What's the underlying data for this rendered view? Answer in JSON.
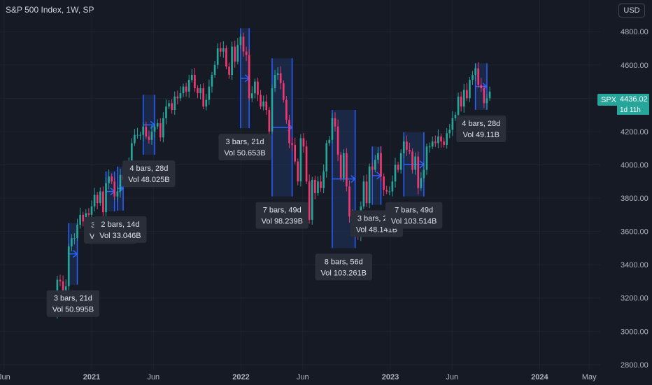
{
  "header": {
    "title": "S&P 500 Index, 1W, SP",
    "currency_button": "USD"
  },
  "last_price": {
    "symbol": "SPX",
    "price": "4436.02",
    "countdown": "1d 11h"
  },
  "colors": {
    "background": "#161a25",
    "up": "#26a69a",
    "down": "#f23670",
    "range_border": "#2962ff",
    "range_fill": "#1e3a6e",
    "label_bg": "#2a2e39",
    "axis_text": "#b2b5be",
    "grid": "#1f2330"
  },
  "chart_data": {
    "type": "candlestick",
    "title": "S&P 500 Index, 1W, SP",
    "y_axis": {
      "ticks": [
        2800,
        3000,
        3200,
        3400,
        3600,
        3800,
        4000,
        4200,
        4400,
        4600,
        4800
      ],
      "tick_labels": [
        "2800.00",
        "3000.00",
        "3200.00",
        "3400.00",
        "3600.00",
        "3800.00",
        "4000.00",
        "4200.00",
        "4400.00",
        "4600.00",
        "4800.00"
      ],
      "ylim": [
        2770,
        4990
      ]
    },
    "x_axis": {
      "tick_labels": [
        "Jun",
        "2021",
        "Jun",
        "2022",
        "Jun",
        "2023",
        "Jun",
        "2024",
        "May"
      ],
      "tick_dates": [
        "2020-06-01",
        "2021-01-01",
        "2021-06-01",
        "2022-01-01",
        "2022-06-01",
        "2023-01-01",
        "2023-06-01",
        "2024-01-01",
        "2024-05-01"
      ],
      "range": [
        "2020-05-22",
        "2024-05-28"
      ]
    },
    "weekly_close": [
      [
        "2020-10-02",
        3100
      ],
      [
        "2020-10-09",
        3310
      ],
      [
        "2020-10-16",
        3300
      ],
      [
        "2020-10-23",
        3240
      ],
      [
        "2020-10-30",
        3270
      ],
      [
        "2020-11-06",
        3510
      ],
      [
        "2020-11-13",
        3560
      ],
      [
        "2020-11-20",
        3560
      ],
      [
        "2020-11-27",
        3640
      ],
      [
        "2020-12-04",
        3700
      ],
      [
        "2020-12-11",
        3660
      ],
      [
        "2020-12-18",
        3710
      ],
      [
        "2020-12-25",
        3700
      ],
      [
        "2021-01-01",
        3750
      ],
      [
        "2021-01-08",
        3820
      ],
      [
        "2021-01-15",
        3770
      ],
      [
        "2021-01-22",
        3840
      ],
      [
        "2021-01-29",
        3715
      ],
      [
        "2021-02-05",
        3890
      ],
      [
        "2021-02-12",
        3930
      ],
      [
        "2021-02-19",
        3900
      ],
      [
        "2021-02-26",
        3810
      ],
      [
        "2021-03-05",
        3840
      ],
      [
        "2021-03-12",
        3940
      ],
      [
        "2021-03-19",
        3910
      ],
      [
        "2021-03-26",
        3970
      ],
      [
        "2021-04-02",
        4020
      ],
      [
        "2021-04-09",
        4130
      ],
      [
        "2021-04-16",
        4180
      ],
      [
        "2021-04-23",
        4180
      ],
      [
        "2021-04-30",
        4180
      ],
      [
        "2021-05-07",
        4230
      ],
      [
        "2021-05-14",
        4170
      ],
      [
        "2021-05-21",
        4150
      ],
      [
        "2021-05-28",
        4200
      ],
      [
        "2021-06-04",
        4230
      ],
      [
        "2021-06-11",
        4250
      ],
      [
        "2021-06-18",
        4165
      ],
      [
        "2021-06-25",
        4280
      ],
      [
        "2021-07-02",
        4350
      ],
      [
        "2021-07-09",
        4370
      ],
      [
        "2021-07-16",
        4330
      ],
      [
        "2021-07-23",
        4410
      ],
      [
        "2021-07-30",
        4400
      ],
      [
        "2021-08-06",
        4430
      ],
      [
        "2021-08-13",
        4470
      ],
      [
        "2021-08-20",
        4440
      ],
      [
        "2021-08-27",
        4510
      ],
      [
        "2021-09-03",
        4540
      ],
      [
        "2021-09-10",
        4460
      ],
      [
        "2021-09-17",
        4430
      ],
      [
        "2021-09-24",
        4460
      ],
      [
        "2021-10-01",
        4350
      ],
      [
        "2021-10-08",
        4390
      ],
      [
        "2021-10-15",
        4470
      ],
      [
        "2021-10-22",
        4540
      ],
      [
        "2021-10-29",
        4600
      ],
      [
        "2021-11-05",
        4700
      ],
      [
        "2021-11-12",
        4680
      ],
      [
        "2021-11-19",
        4700
      ],
      [
        "2021-11-26",
        4590
      ],
      [
        "2021-12-03",
        4540
      ],
      [
        "2021-12-10",
        4710
      ],
      [
        "2021-12-17",
        4620
      ],
      [
        "2021-12-24",
        4720
      ],
      [
        "2021-12-31",
        4770
      ],
      [
        "2022-01-07",
        4680
      ],
      [
        "2022-01-14",
        4660
      ],
      [
        "2022-01-21",
        4400
      ],
      [
        "2022-01-28",
        4430
      ],
      [
        "2022-02-04",
        4500
      ],
      [
        "2022-02-11",
        4420
      ],
      [
        "2022-02-18",
        4350
      ],
      [
        "2022-02-25",
        4380
      ],
      [
        "2022-03-04",
        4330
      ],
      [
        "2022-03-11",
        4200
      ],
      [
        "2022-03-18",
        4460
      ],
      [
        "2022-03-25",
        4540
      ],
      [
        "2022-04-01",
        4550
      ],
      [
        "2022-04-08",
        4490
      ],
      [
        "2022-04-15",
        4390
      ],
      [
        "2022-04-22",
        4270
      ],
      [
        "2022-04-29",
        4130
      ],
      [
        "2022-05-06",
        4120
      ],
      [
        "2022-05-13",
        4020
      ],
      [
        "2022-05-20",
        3900
      ],
      [
        "2022-05-27",
        4160
      ],
      [
        "2022-06-03",
        4110
      ],
      [
        "2022-06-10",
        3900
      ],
      [
        "2022-06-17",
        3670
      ],
      [
        "2022-06-24",
        3910
      ],
      [
        "2022-07-01",
        3830
      ],
      [
        "2022-07-08",
        3900
      ],
      [
        "2022-07-15",
        3860
      ],
      [
        "2022-07-22",
        3960
      ],
      [
        "2022-07-29",
        4130
      ],
      [
        "2022-08-05",
        4150
      ],
      [
        "2022-08-12",
        4280
      ],
      [
        "2022-08-19",
        4230
      ],
      [
        "2022-08-26",
        4060
      ],
      [
        "2022-09-02",
        3920
      ],
      [
        "2022-09-09",
        4070
      ],
      [
        "2022-09-16",
        3870
      ],
      [
        "2022-09-23",
        3690
      ],
      [
        "2022-09-30",
        3590
      ],
      [
        "2022-10-07",
        3640
      ],
      [
        "2022-10-14",
        3580
      ],
      [
        "2022-10-21",
        3750
      ],
      [
        "2022-10-28",
        3900
      ],
      [
        "2022-11-04",
        3770
      ],
      [
        "2022-11-11",
        3990
      ],
      [
        "2022-11-18",
        3970
      ],
      [
        "2022-11-25",
        4030
      ],
      [
        "2022-12-02",
        4070
      ],
      [
        "2022-12-09",
        3930
      ],
      [
        "2022-12-16",
        3850
      ],
      [
        "2022-12-23",
        3840
      ],
      [
        "2022-12-30",
        3840
      ],
      [
        "2023-01-06",
        3900
      ],
      [
        "2023-01-13",
        4000
      ],
      [
        "2023-01-20",
        3970
      ],
      [
        "2023-01-27",
        4070
      ],
      [
        "2023-02-03",
        4140
      ],
      [
        "2023-02-10",
        4090
      ],
      [
        "2023-02-17",
        4080
      ],
      [
        "2023-02-24",
        3970
      ],
      [
        "2023-03-03",
        4050
      ],
      [
        "2023-03-10",
        3860
      ],
      [
        "2023-03-17",
        3920
      ],
      [
        "2023-03-24",
        3970
      ],
      [
        "2023-03-31",
        4110
      ],
      [
        "2023-04-07",
        4110
      ],
      [
        "2023-04-14",
        4140
      ],
      [
        "2023-04-21",
        4130
      ],
      [
        "2023-04-28",
        4170
      ],
      [
        "2023-05-05",
        4140
      ],
      [
        "2023-05-12",
        4120
      ],
      [
        "2023-05-19",
        4190
      ],
      [
        "2023-05-26",
        4210
      ],
      [
        "2023-06-02",
        4280
      ],
      [
        "2023-06-09",
        4300
      ],
      [
        "2023-06-16",
        4410
      ],
      [
        "2023-06-23",
        4350
      ],
      [
        "2023-06-30",
        4450
      ],
      [
        "2023-07-07",
        4400
      ],
      [
        "2023-07-14",
        4510
      ],
      [
        "2023-07-21",
        4540
      ],
      [
        "2023-07-28",
        4580
      ],
      [
        "2023-08-04",
        4480
      ],
      [
        "2023-08-11",
        4460
      ],
      [
        "2023-08-18",
        4370
      ],
      [
        "2023-08-25",
        4400
      ],
      [
        "2023-09-01",
        4440
      ]
    ],
    "range_annotations": [
      {
        "bars": "3 bars, 21d",
        "volume": "Vol 50.995B",
        "start": "2020-11-06",
        "end": "2020-11-27",
        "low": 3280,
        "high": 3650
      },
      {
        "bars": "3 bars, 20d",
        "volume": "Vol 50.332B",
        "start": "2021-02-05",
        "end": "2021-02-26",
        "low": 3720,
        "high": 3960
      },
      {
        "bars": "2 bars, 14d",
        "volume": "Vol 33.046B",
        "start": "2021-03-05",
        "end": "2021-03-19",
        "low": 3725,
        "high": 3990
      },
      {
        "bars": "4 bars, 28d",
        "volume": "Vol 48.025B",
        "start": "2021-05-07",
        "end": "2021-06-04",
        "low": 4060,
        "high": 4420
      },
      {
        "bars": "3 bars, 21d",
        "volume": "Vol 50.653B",
        "start": "2021-12-31",
        "end": "2022-01-21",
        "low": 4220,
        "high": 4820
      },
      {
        "bars": "7 bars, 49d",
        "volume": "Vol 98.239B",
        "start": "2022-03-18",
        "end": "2022-05-06",
        "low": 3810,
        "high": 4640
      },
      {
        "bars": "8 bars, 56d",
        "volume": "Vol 103.261B",
        "start": "2022-08-12",
        "end": "2022-10-07",
        "low": 3500,
        "high": 4330
      },
      {
        "bars": "3 bars, 21d",
        "volume": "Vol 48.141B",
        "start": "2022-11-18",
        "end": "2022-12-09",
        "low": 3760,
        "high": 4110
      },
      {
        "bars": "7 bars, 49d",
        "volume": "Vol 103.514B",
        "start": "2023-02-03",
        "end": "2023-03-24",
        "low": 3810,
        "high": 4195
      },
      {
        "bars": "4 bars, 28d",
        "volume": "Vol 49.11B",
        "start": "2023-07-28",
        "end": "2023-08-25",
        "low": 4330,
        "high": 4610
      }
    ]
  }
}
